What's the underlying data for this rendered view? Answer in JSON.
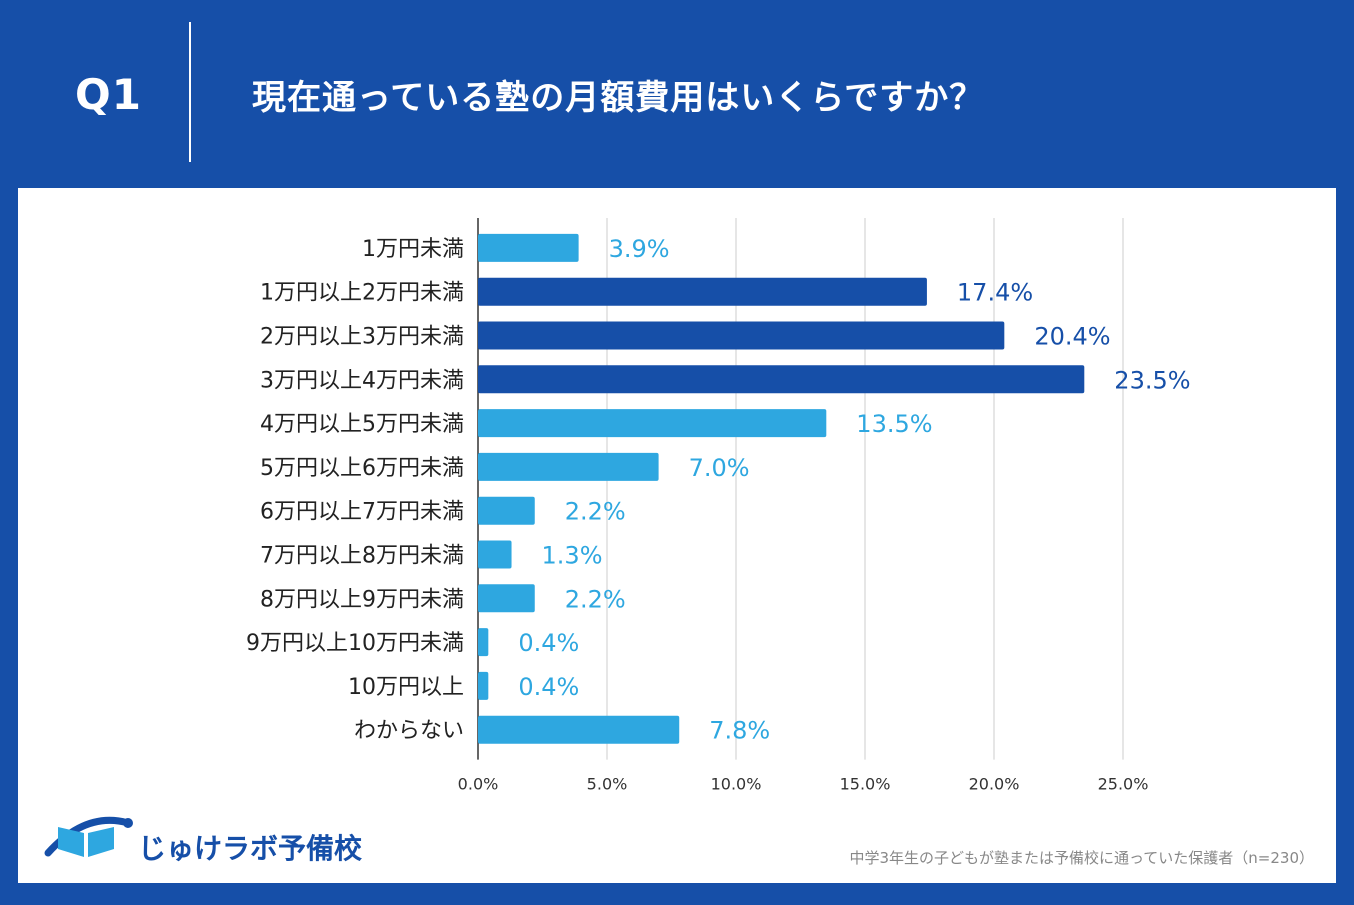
{
  "header": {
    "question_id": "Q1",
    "question_text": "現在通っている塾の月額費用はいくらですか？"
  },
  "colors": {
    "background": "#164fa8",
    "bar_light": "#2ea7e0",
    "bar_dark": "#164fa8",
    "grid": "#cccccc"
  },
  "chart_data": {
    "type": "bar",
    "orientation": "horizontal",
    "title": "現在通っている塾の月額費用はいくらですか？",
    "categories": [
      "1万円未満",
      "1万円以上2万円未満",
      "2万円以上3万円未満",
      "3万円以上4万円未満",
      "4万円以上5万円未満",
      "5万円以上6万円未満",
      "6万円以上7万円未満",
      "7万円以上8万円未満",
      "8万円以上9万円未満",
      "9万円以上10万円未満",
      "10万円以上",
      "わからない"
    ],
    "values": [
      3.9,
      17.4,
      20.4,
      23.5,
      13.5,
      7.0,
      2.2,
      1.3,
      2.2,
      0.4,
      0.4,
      7.8
    ],
    "value_labels": [
      "3.9%",
      "17.4%",
      "20.4%",
      "23.5%",
      "13.5%",
      "7.0%",
      "2.2%",
      "1.3%",
      "2.2%",
      "0.4%",
      "0.4%",
      "7.8%"
    ],
    "highlighted": [
      false,
      true,
      true,
      true,
      false,
      false,
      false,
      false,
      false,
      false,
      false,
      false
    ],
    "xlim": [
      0,
      25
    ],
    "xticks": [
      0,
      5,
      10,
      15,
      20,
      25
    ],
    "xtick_labels": [
      "0.0%",
      "5.0%",
      "10.0%",
      "15.0%",
      "20.0%",
      "25.0%"
    ],
    "grid": true,
    "xlabel": "",
    "ylabel": ""
  },
  "footer": {
    "logo_text": "じゅけラボ予備校",
    "note": "中学3年生の子どもが塾または予備校に通っていた保護者（n=230）"
  }
}
